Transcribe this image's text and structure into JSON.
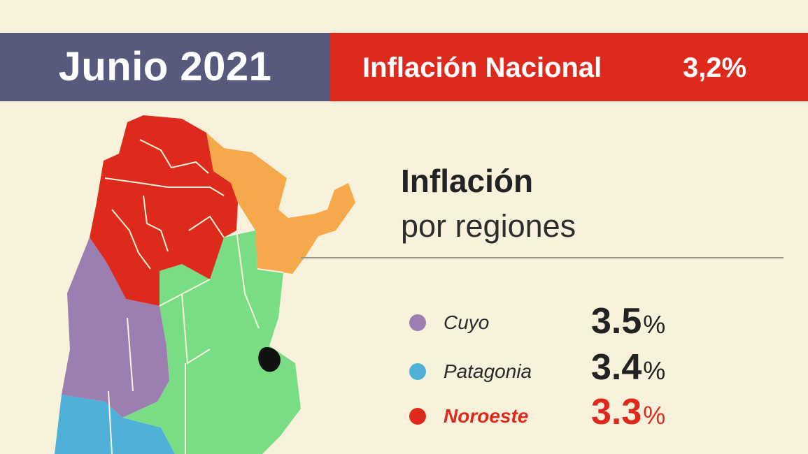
{
  "header": {
    "date": "Junio 2021",
    "national_label": "Inflación Nacional",
    "national_value": "3,2%"
  },
  "section": {
    "title": "Inflación",
    "subtitle": "por regiones"
  },
  "legend": [
    {
      "region": "Cuyo",
      "value_text": "3.5",
      "unit": "%",
      "color": "#9a7fb0"
    },
    {
      "region": "Patagonia",
      "value_text": "3.4",
      "unit": "%",
      "color": "#4fb0d8"
    },
    {
      "region": "Noroeste",
      "value_text": "3.3",
      "unit": "%",
      "color": "#dd2a1d"
    }
  ],
  "colors": {
    "header_left_bg": "#575a7c",
    "header_right_bg": "#dd2a1d",
    "page_bg": "#f8f2dc",
    "noroeste": "#dd2a1d",
    "noreste": "#f5a94a",
    "cuyo": "#9a7fb0",
    "pampeana": "#78dd85",
    "patagonia": "#4fb0d8",
    "gba": "#111111"
  },
  "chart_data": {
    "type": "table",
    "title": "Inflación",
    "subtitle": "por regiones",
    "columns": [
      "region",
      "inflation_pct"
    ],
    "rows": [
      [
        "Cuyo",
        3.5
      ],
      [
        "Patagonia",
        3.4
      ],
      [
        "Noroeste",
        3.3
      ]
    ],
    "national": {
      "label": "Inflación Nacional",
      "value": 3.2
    },
    "period": "Junio 2021"
  }
}
